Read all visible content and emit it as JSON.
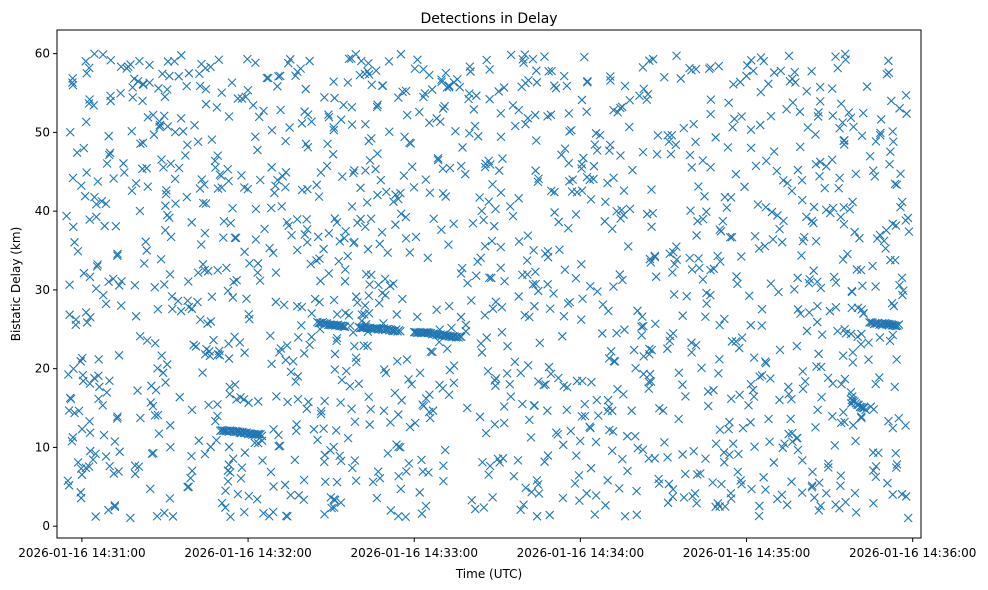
{
  "chart_data": {
    "type": "scatter",
    "title": "Detections in Delay",
    "xlabel": "Time (UTC)",
    "ylabel": "Bistatic Delay (km)",
    "marker": "x",
    "color": "#1f77b4",
    "grid": false,
    "xlim": [
      "2026-01-16 14:30:51",
      "2026-01-16 14:36:03"
    ],
    "ylim": [
      -1.5,
      63
    ],
    "xticks": [
      "2026-01-16 14:31:00",
      "2026-01-16 14:32:00",
      "2026-01-16 14:33:00",
      "2026-01-16 14:34:00",
      "2026-01-16 14:35:00",
      "2026-01-16 14:36:00"
    ],
    "yticks": [
      0,
      10,
      20,
      30,
      40,
      50,
      60
    ],
    "x_range": [
      "2026-01-16 14:30:54",
      "2026-01-16 14:35:59"
    ],
    "clutter": {
      "count": 1500,
      "y_range": [
        1,
        60
      ]
    },
    "tracks": [
      {
        "x_start": "2026-01-16 14:31:50",
        "x_end": "2026-01-16 14:32:05",
        "y_start": 12.2,
        "y_end": 11.6
      },
      {
        "x_start": "2026-01-16 14:32:25",
        "x_end": "2026-01-16 14:32:35",
        "y_start": 25.9,
        "y_end": 25.4
      },
      {
        "x_start": "2026-01-16 14:32:40",
        "x_end": "2026-01-16 14:32:55",
        "y_start": 25.3,
        "y_end": 24.8
      },
      {
        "x_start": "2026-01-16 14:33:00",
        "x_end": "2026-01-16 14:33:17",
        "y_start": 24.7,
        "y_end": 24.0
      },
      {
        "x_start": "2026-01-16 14:35:45",
        "x_end": "2026-01-16 14:35:55",
        "y_start": 25.8,
        "y_end": 25.5
      },
      {
        "x_start": "2026-01-16 14:35:38",
        "x_end": "2026-01-16 14:35:43",
        "y_start": 16.0,
        "y_end": 14.8
      }
    ]
  }
}
